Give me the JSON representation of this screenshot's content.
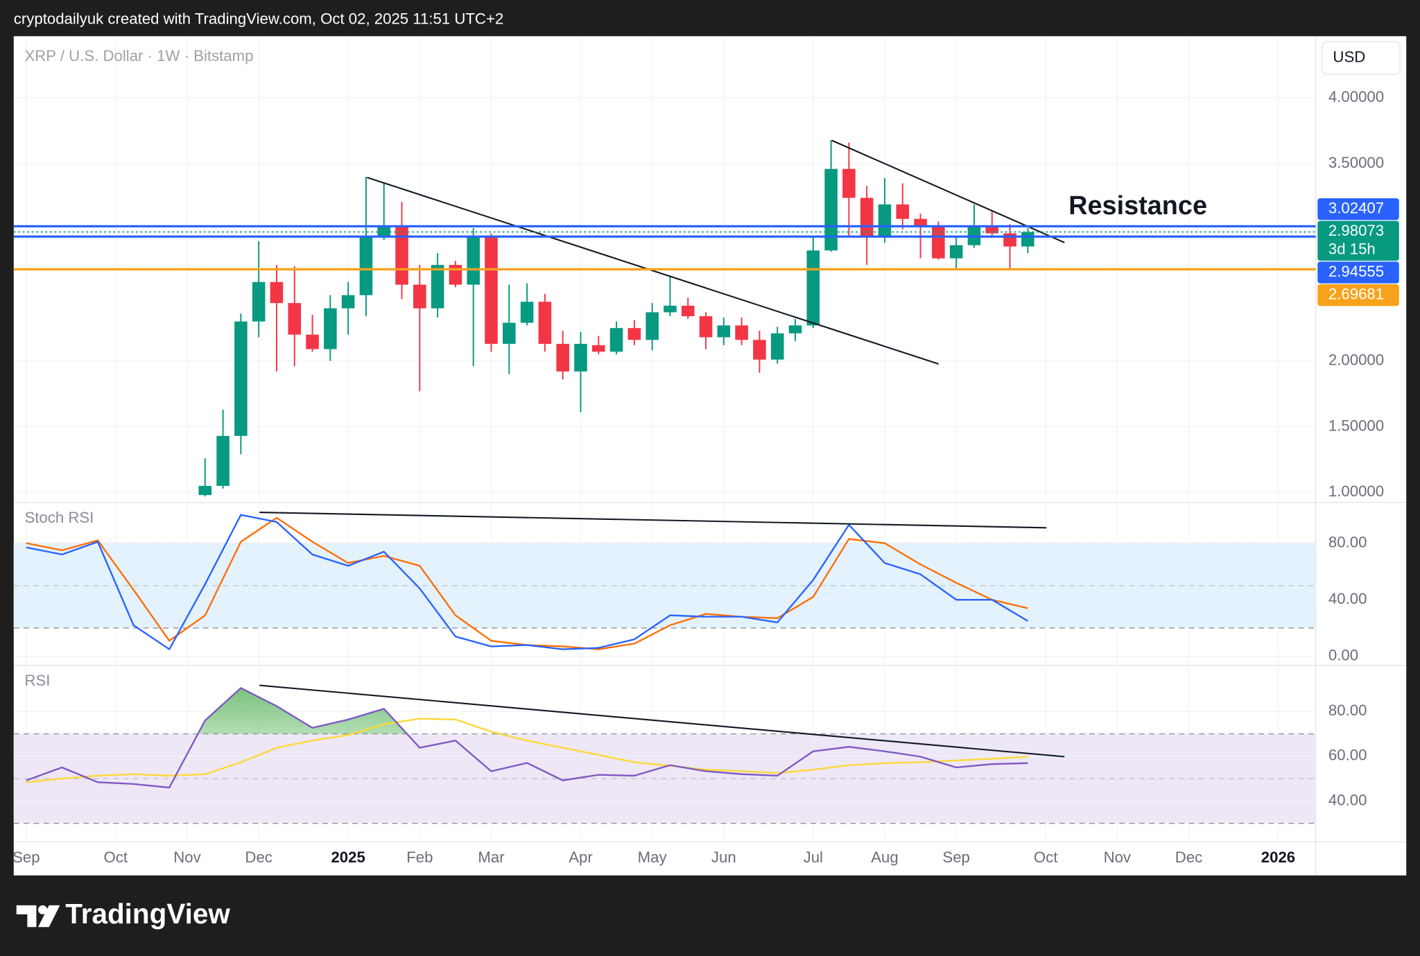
{
  "header": "cryptodailyuk created with TradingView.com, Oct 02, 2025 11:51 UTC+2",
  "currency": "USD",
  "brand": "TradingView",
  "chart_data": [
    {
      "type": "candlestick",
      "title": "XRP / U.S. Dollar · 1W · Bitstamp",
      "x": [
        0,
        1,
        2,
        3,
        4,
        5,
        6,
        7,
        8,
        9,
        10,
        11,
        12,
        13,
        14,
        15,
        16,
        17,
        18,
        19,
        20,
        21,
        22,
        23,
        24,
        25,
        26,
        27,
        28,
        29,
        30,
        31,
        32,
        33,
        34,
        35,
        36,
        37,
        38,
        39,
        40,
        41,
        42,
        43,
        44,
        45,
        46
      ],
      "open": [
        0.98,
        1.05,
        1.43,
        2.3,
        2.6,
        2.44,
        2.2,
        2.09,
        2.4,
        2.5,
        2.95,
        3.03,
        2.58,
        2.4,
        2.73,
        2.58,
        2.95,
        2.13,
        2.29,
        2.45,
        2.13,
        1.92,
        2.12,
        2.07,
        2.25,
        2.16,
        2.37,
        2.42,
        2.34,
        2.18,
        2.27,
        2.16,
        2.01,
        2.21,
        2.27,
        2.84,
        3.46,
        3.24,
        2.95,
        3.19,
        3.08,
        3.03,
        2.78,
        2.88,
        3.03,
        2.97,
        2.87
      ],
      "high": [
        1.26,
        1.63,
        2.36,
        2.91,
        2.73,
        2.72,
        2.35,
        2.5,
        2.6,
        3.4,
        3.35,
        3.21,
        2.73,
        2.82,
        2.76,
        3.01,
        2.97,
        2.58,
        2.59,
        2.51,
        2.23,
        2.22,
        2.19,
        2.3,
        2.31,
        2.44,
        2.65,
        2.48,
        2.37,
        2.33,
        2.33,
        2.23,
        2.26,
        2.32,
        2.95,
        3.68,
        3.66,
        3.33,
        3.39,
        3.35,
        3.12,
        3.06,
        2.94,
        3.19,
        3.14,
        3.04,
        3.01
      ],
      "low": [
        0.97,
        1.03,
        1.29,
        2.18,
        1.92,
        1.96,
        2.07,
        2.0,
        2.2,
        2.34,
        2.92,
        2.47,
        1.77,
        2.33,
        2.56,
        1.96,
        2.07,
        1.9,
        2.27,
        2.07,
        1.86,
        1.61,
        2.05,
        2.05,
        2.12,
        2.08,
        2.34,
        2.32,
        2.09,
        2.12,
        2.12,
        1.91,
        1.98,
        2.15,
        2.25,
        2.83,
        2.95,
        2.73,
        2.9,
        3.0,
        2.78,
        2.77,
        2.69,
        2.86,
        2.95,
        2.69,
        2.82
      ],
      "close": [
        1.05,
        1.43,
        2.3,
        2.6,
        2.44,
        2.2,
        2.09,
        2.4,
        2.5,
        2.95,
        3.03,
        2.58,
        2.4,
        2.73,
        2.58,
        2.95,
        2.13,
        2.29,
        2.45,
        2.13,
        1.92,
        2.13,
        2.07,
        2.25,
        2.16,
        2.37,
        2.42,
        2.34,
        2.18,
        2.27,
        2.16,
        2.01,
        2.21,
        2.27,
        2.84,
        3.46,
        3.24,
        2.95,
        3.19,
        3.08,
        3.03,
        2.78,
        2.88,
        3.03,
        2.97,
        2.87,
        2.98
      ],
      "up_color": "#089981",
      "down_color": "#f23645",
      "xlim": [
        -10.7,
        62.1
      ],
      "xticks": [
        {
          "value": -10,
          "label": "Sep"
        },
        {
          "value": -5,
          "label": "Oct"
        },
        {
          "value": -1,
          "label": "Nov"
        },
        {
          "value": 3,
          "label": "Dec"
        },
        {
          "value": 8,
          "label": "2025"
        },
        {
          "value": 12,
          "label": "Feb"
        },
        {
          "value": 16,
          "label": "Mar"
        },
        {
          "value": 21,
          "label": "Apr"
        },
        {
          "value": 25,
          "label": "May"
        },
        {
          "value": 29,
          "label": "Jun"
        },
        {
          "value": 34,
          "label": "Jul"
        },
        {
          "value": 38,
          "label": "Aug"
        },
        {
          "value": 42,
          "label": "Sep"
        },
        {
          "value": 47,
          "label": "Oct"
        },
        {
          "value": 51,
          "label": "Nov"
        },
        {
          "value": 55,
          "label": "Dec"
        },
        {
          "value": 60,
          "label": "2026"
        }
      ],
      "ylim": [
        0.924,
        4.469
      ],
      "yticks": [
        {
          "value": 1,
          "label": "1.00000"
        },
        {
          "value": 1.5,
          "label": "1.50000"
        },
        {
          "value": 2,
          "label": "2.00000"
        },
        {
          "value": 3.5,
          "label": "3.50000"
        },
        {
          "value": 4,
          "label": "4.00000"
        }
      ],
      "grid": true,
      "levels": [
        {
          "value": 3.02407,
          "color": "#2962ff",
          "style": "solid"
        },
        {
          "value": 2.98073,
          "color": "#089981",
          "style": "dotted",
          "countdown": "3d 15h"
        },
        {
          "value": 2.94555,
          "color": "#2962ff",
          "style": "solid"
        },
        {
          "value": 2.69681,
          "color": "#f7a21b",
          "style": "solid"
        }
      ],
      "trendlines": [
        {
          "x": [
            9.06,
            41.01
          ],
          "y": [
            3.395,
            1.977
          ]
        },
        {
          "x": [
            35.04,
            48.05
          ],
          "y": [
            3.677,
            2.9
          ]
        }
      ],
      "annotations": [
        "Resistance"
      ]
    },
    {
      "type": "line",
      "title": "Stoch RSI",
      "x": [
        -10,
        -8,
        -6,
        -4,
        -2,
        0,
        2,
        4,
        6,
        8,
        10,
        12,
        14,
        16,
        18,
        20,
        22,
        24,
        26,
        28,
        30,
        32,
        34,
        36,
        38,
        40,
        42,
        44,
        46
      ],
      "series": [
        {
          "color": "#2962ff",
          "values": [
            77,
            72,
            81,
            22,
            5,
            51,
            100,
            95,
            72,
            64,
            74,
            48,
            14,
            7,
            8,
            5,
            6,
            12,
            29,
            28,
            28,
            24,
            54,
            93,
            66,
            58,
            40,
            40,
            25
          ]
        },
        {
          "color": "#ff6d00",
          "values": [
            80,
            75,
            82,
            47,
            11,
            29,
            81,
            98,
            81,
            66,
            71,
            64,
            29,
            11,
            8,
            7,
            5,
            9,
            22,
            30,
            28,
            27,
            42,
            83,
            80,
            65,
            52,
            40,
            34
          ]
        }
      ],
      "ylim": [
        -6.4,
        108.8
      ],
      "yticks": [
        {
          "value": 0,
          "label": "0.00"
        },
        {
          "value": 40,
          "label": "40.00"
        },
        {
          "value": 80,
          "label": "80.00"
        }
      ],
      "bands": [
        20,
        80
      ],
      "midline": 50,
      "band_color": "#e3f2fd",
      "trendlines": [
        {
          "x": [
            3.04,
            47.04
          ],
          "y": [
            101.8,
            90.9
          ]
        }
      ]
    },
    {
      "type": "line",
      "title": "RSI",
      "x": [
        -10,
        -8,
        -6,
        -4,
        -2,
        0,
        2,
        4,
        6,
        8,
        10,
        12,
        14,
        16,
        18,
        20,
        22,
        24,
        26,
        28,
        30,
        32,
        34,
        36,
        38,
        40,
        42,
        44,
        46
      ],
      "series": [
        {
          "color": "#7e57c2",
          "values": [
            49.2,
            55,
            48.4,
            47.6,
            46,
            76,
            90.5,
            82.4,
            72.7,
            76.4,
            81.2,
            63.8,
            67,
            53.3,
            57,
            49.2,
            51.7,
            51.3,
            56,
            53.3,
            52,
            51.3,
            62.2,
            64.2,
            62.2,
            59.8,
            55,
            56.5,
            56.9
          ]
        },
        {
          "color": "#fdd835",
          "values": [
            48.4,
            50,
            51.3,
            52,
            51.3,
            52,
            57.3,
            63.8,
            67,
            69.5,
            74.3,
            76.8,
            76.4,
            71,
            67,
            63.8,
            60.6,
            57.3,
            55.7,
            54,
            53.3,
            52.5,
            54,
            56,
            56.9,
            57.3,
            58.1,
            58.9,
            59.8
          ]
        }
      ],
      "ylim": [
        21.7,
        100.6
      ],
      "yticks": [
        {
          "value": 40,
          "label": "40.00"
        },
        {
          "value": 60,
          "label": "60.00"
        },
        {
          "value": 80,
          "label": "80.00"
        }
      ],
      "bands": [
        30,
        70
      ],
      "midline": 50,
      "band_color": "#ede7f6",
      "overbought_fill": "#4caf50",
      "trendlines": [
        {
          "x": [
            3.04,
            48.05
          ],
          "y": [
            91.7,
            59.8
          ]
        }
      ]
    }
  ]
}
